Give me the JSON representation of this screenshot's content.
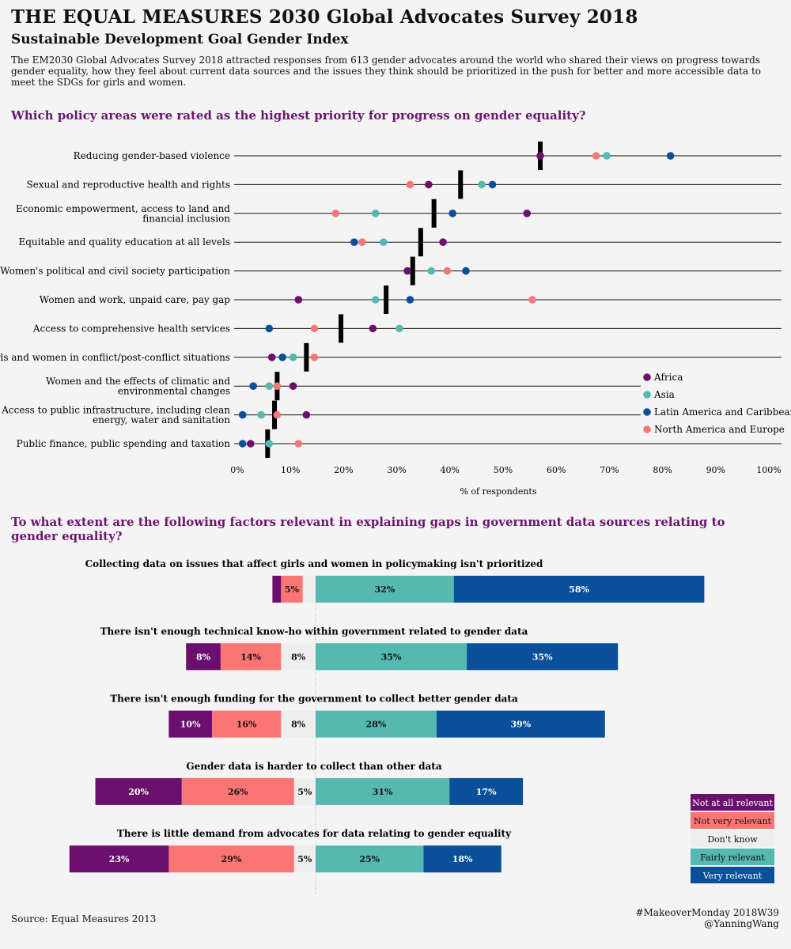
{
  "header": {
    "title": "THE EQUAL MEASURES 2030 Global Advocates Survey 2018",
    "subtitle": "Sustainable Development Goal Gender Index",
    "intro": "The EM2030 Global Advocates Survey 2018 attracted responses from 613 gender advocates around the world who shared their views on progress towards gender equality, how they feel about current data sources and the issues they think should be prioritized in the push for better and more accessible data to meet the SDGs for girls and women."
  },
  "colors": {
    "Africa": "#6b0f6f",
    "Asia": "#55b8b1",
    "Latin America and Caribbean": "#0a4f99",
    "North America and Europe": "#f57878",
    "Not at all relevant": "#6b0f6f",
    "Not very relevant": "#fb7574",
    "Don't know": "#eeeeee",
    "Fairly relevant": "#55b8b1",
    "Very relevant": "#0a4f99"
  },
  "chart_data": [
    {
      "type": "scatter",
      "title": "Which policy areas were rated as the highest priority for progress on gender equality?",
      "xlabel": "% of respondents",
      "xlim": [
        0,
        100
      ],
      "xticks": [
        "0%",
        "10%",
        "20%",
        "30%",
        "40%",
        "50%",
        "60%",
        "70%",
        "80%",
        "90%",
        "100%"
      ],
      "legend_position": "bottom-right",
      "categories": [
        "Reducing gender-based violence",
        "Sexual and reproductive health and rights",
        "Economic empowerment, access to land and financial inclusion",
        "Equitable and quality education at all levels",
        "Women's political and civil society participation",
        "Women and work, unpaid care, pay gap",
        "Access to comprehensive health services",
        "Girls and women in conflict/post-conflict situations",
        "Women and the effects of climatic and environmental changes",
        "Access to public infrastructure, including clean energy, water and sanitation",
        "Public finance, public spending and taxation"
      ],
      "category_lines": [
        [
          "Reducing gender-based violence"
        ],
        [
          "Sexual and reproductive health and rights"
        ],
        [
          "Economic empowerment, access to land and",
          "financial inclusion"
        ],
        [
          "Equitable and quality education at all levels"
        ],
        [
          "Women's political and civil society participation"
        ],
        [
          "Women and work, unpaid care, pay gap"
        ],
        [
          "Access to comprehensive health services"
        ],
        [
          "Girls and women in conflict/post-conflict situations"
        ],
        [
          "Women and the effects of climatic and",
          "environmental changes"
        ],
        [
          "Access to public infrastructure, including clean",
          "energy, water and sanitation"
        ],
        [
          "Public finance, public spending and taxation"
        ]
      ],
      "overall": [
        57,
        42,
        37,
        34.5,
        33,
        28,
        19.5,
        13,
        7.5,
        7,
        5.7
      ],
      "series": [
        {
          "name": "Africa",
          "values": [
            57,
            36,
            54.5,
            38.7,
            32,
            11.5,
            25.5,
            6.5,
            10.5,
            13,
            2.5
          ]
        },
        {
          "name": "Asia",
          "values": [
            69.5,
            46,
            26,
            27.5,
            36.5,
            26,
            30.5,
            10.5,
            6,
            4.5,
            6
          ]
        },
        {
          "name": "Latin America and Caribbean",
          "values": [
            81.5,
            48,
            40.5,
            22,
            43,
            32.5,
            6,
            8.5,
            3,
            1,
            1
          ]
        },
        {
          "name": "North America and Europe",
          "values": [
            67.5,
            32.5,
            18.5,
            23.5,
            39.5,
            55.5,
            14.5,
            14.5,
            7.5,
            7.5,
            11.5
          ]
        }
      ]
    },
    {
      "type": "bar",
      "title": "To what extent are the following factors relevant in explaining gaps in government data sources relating to gender equality?",
      "stacked": "diverging",
      "legend_position": "bottom-right",
      "categories": [
        "Collecting data on issues that affect girls and women in policymaking isn't prioritized",
        "There isn't enough technical know-ho within government related to gender data",
        "There isn't enough funding for the government to collect better gender data",
        "Gender data is harder to collect than other data",
        "There is little demand from advocates for data relating to gender equality"
      ],
      "series": [
        {
          "name": "Not at all relevant",
          "values": [
            2,
            8,
            10,
            20,
            23
          ],
          "labels": [
            "",
            "8%",
            "10%",
            "20%",
            "23%"
          ]
        },
        {
          "name": "Not very relevant",
          "values": [
            5,
            14,
            16,
            26,
            29
          ],
          "labels": [
            "5%",
            "14%",
            "16%",
            "26%",
            "29%"
          ]
        },
        {
          "name": "Don't know",
          "values": [
            3,
            8,
            8,
            5,
            5
          ],
          "labels": [
            "",
            "8%",
            "8%",
            "5%",
            "5%"
          ]
        },
        {
          "name": "Fairly relevant",
          "values": [
            32,
            35,
            28,
            31,
            25
          ],
          "labels": [
            "32%",
            "35%",
            "28%",
            "31%",
            "25%"
          ]
        },
        {
          "name": "Very relevant",
          "values": [
            58,
            35,
            39,
            17,
            18
          ],
          "labels": [
            "58%",
            "35%",
            "39%",
            "17%",
            "18%"
          ]
        }
      ]
    }
  ],
  "footer": {
    "source": "Source: Equal Measures 2013",
    "credit_line1": "#MakeoverMonday 2018W39",
    "credit_line2": "@YanningWang"
  }
}
